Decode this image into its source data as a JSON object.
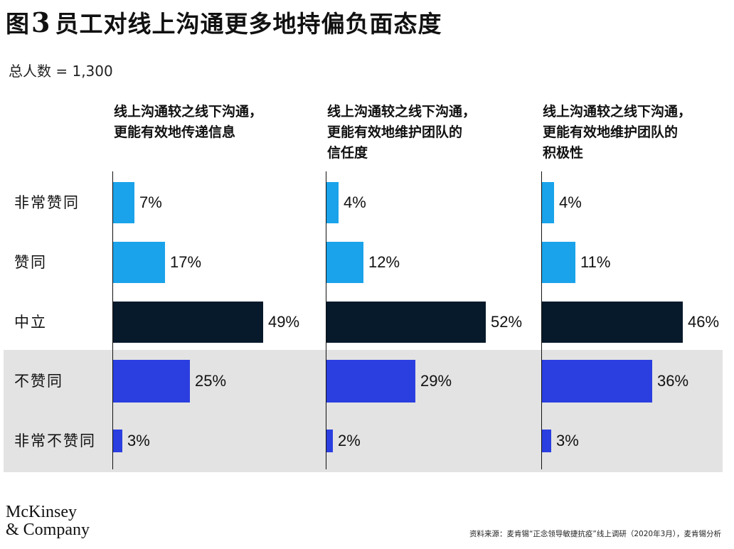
{
  "title": {
    "prefix": "图",
    "number": "3",
    "text": "员工对线上沟通更多地持偏负面态度"
  },
  "total_label": "总人数 = 1,300",
  "colors": {
    "agree": "#1aa3ea",
    "neutral": "#061a2b",
    "disagree": "#2b3fe0",
    "shade": "#e3e3e3"
  },
  "chart_data": {
    "type": "bar",
    "orientation": "horizontal",
    "unit": "%",
    "categories": [
      "非常赞同",
      "赞同",
      "中立",
      "不赞同",
      "非常不赞同"
    ],
    "series": [
      {
        "name": "线上沟通较之线下沟通，更能有效地传递信息",
        "values": [
          7,
          17,
          49,
          25,
          3
        ],
        "labels": [
          "7%",
          "17%",
          "49%",
          "25%",
          "3%"
        ]
      },
      {
        "name": "线上沟通较之线下沟通，更能有效地维护团队的信任度",
        "values": [
          4,
          12,
          52,
          29,
          2
        ],
        "labels": [
          "4%",
          "12%",
          "52%",
          "29%",
          "2%"
        ]
      },
      {
        "name": "线上沟通较之线下沟通，更能有效地维护团队的积极性",
        "values": [
          4,
          11,
          46,
          36,
          3
        ],
        "labels": [
          "4%",
          "11%",
          "46%",
          "36%",
          "3%"
        ]
      }
    ],
    "xlim": [
      0,
      100
    ],
    "grid": false,
    "legend": "none"
  },
  "column_titles": [
    [
      "线上沟通较之线下沟通，",
      "更能有效地传递信息"
    ],
    [
      "线上沟通较之线下沟通，",
      "更能有效地维护团队的",
      "信任度"
    ],
    [
      "线上沟通较之线下沟通，",
      "更能有效地维护团队的",
      "积极性"
    ]
  ],
  "logo": {
    "line1": "McKinsey",
    "line2": "& Company"
  },
  "source": "资料来源：麦肯锡“正念领导敏捷抗疫”线上调研（2020年3月），麦肯锡分析"
}
